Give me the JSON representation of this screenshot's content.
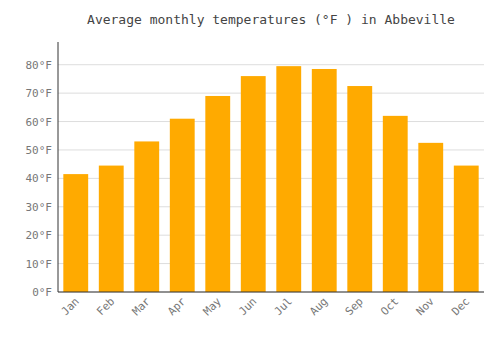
{
  "chart_data": {
    "type": "bar",
    "title": "Average monthly temperatures (°F ) in Abbeville",
    "categories": [
      "Jan",
      "Feb",
      "Mar",
      "Apr",
      "May",
      "Jun",
      "Jul",
      "Aug",
      "Sep",
      "Oct",
      "Nov",
      "Dec"
    ],
    "values": [
      41.5,
      44.5,
      53,
      61,
      69,
      76,
      79.5,
      78.5,
      72.5,
      62,
      52.5,
      44.5
    ],
    "color": "#FFAA00",
    "ylim": [
      0,
      88
    ],
    "yticks": [
      {
        "value": 0,
        "label": "0°F"
      },
      {
        "value": 10,
        "label": "10°F"
      },
      {
        "value": 20,
        "label": "20°F"
      },
      {
        "value": 30,
        "label": "30°F"
      },
      {
        "value": 40,
        "label": "40°F"
      },
      {
        "value": 50,
        "label": "50°F"
      },
      {
        "value": 60,
        "label": "60°F"
      },
      {
        "value": 70,
        "label": "70°F"
      },
      {
        "value": 80,
        "label": "80°F"
      }
    ],
    "grid": true
  }
}
